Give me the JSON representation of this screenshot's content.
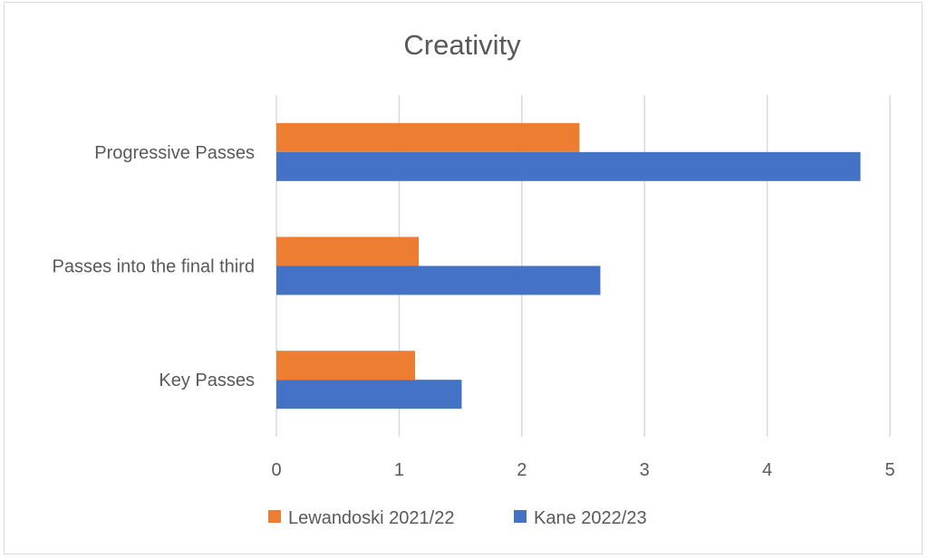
{
  "chart_data": {
    "type": "bar",
    "orientation": "horizontal",
    "title": "Creativity",
    "categories": [
      "Progressive Passes",
      "Passes into the final third",
      "Key Passes"
    ],
    "series": [
      {
        "name": "Lewandoski 2021/22",
        "color": "#ED7D31",
        "values": [
          2.47,
          1.16,
          1.13
        ]
      },
      {
        "name": "Kane 2022/23",
        "color": "#4472C4",
        "values": [
          4.76,
          2.64,
          1.51
        ]
      }
    ],
    "xlim": [
      0,
      5
    ],
    "xticks": [
      "0",
      "1",
      "2",
      "3",
      "4",
      "5"
    ],
    "xlabel": "",
    "ylabel": "",
    "grid": true,
    "legend_position": "bottom"
  }
}
